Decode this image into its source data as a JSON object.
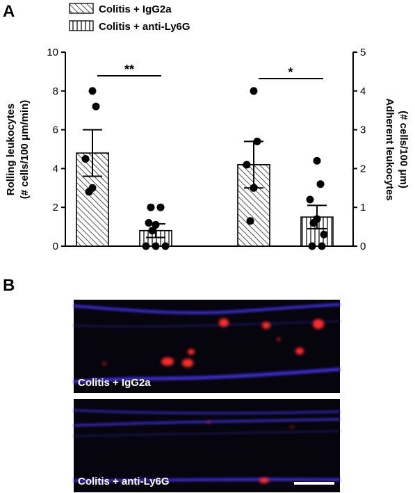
{
  "panel_a_label": "A",
  "panel_b_label": "B",
  "legend": [
    {
      "label": "Colitis + IgG2a",
      "pattern": "diagonal-hatch"
    },
    {
      "label": "Colitis + anti-Ly6G",
      "pattern": "vertical-stripes"
    }
  ],
  "chart_data": {
    "type": "bar",
    "groups": [
      {
        "axis": "left",
        "ylabel_line1": "Rolling leukocytes",
        "ylabel_line2": "(# cells/100 μm/min)",
        "ylim": [
          0,
          10
        ],
        "yticks": [
          0,
          2,
          4,
          6,
          8,
          10
        ],
        "significance": "**",
        "bars": [
          {
            "series": "Colitis + IgG2a",
            "mean": 4.8,
            "sem": 1.2,
            "points": [
              8.0,
              7.2,
              4.5,
              3.0,
              2.8
            ]
          },
          {
            "series": "Colitis + anti-Ly6G",
            "mean": 0.8,
            "sem": 0.35,
            "points": [
              2.0,
              2.0,
              1.2,
              1.1,
              0.8,
              0.0,
              0.0,
              0.0
            ]
          }
        ]
      },
      {
        "axis": "right",
        "ylabel_line1": "Adherent leukocytes",
        "ylabel_line2": "(# cells/100 μm)",
        "ylim": [
          0,
          5
        ],
        "yticks": [
          0,
          1,
          2,
          3,
          4,
          5
        ],
        "significance": "*",
        "bars": [
          {
            "series": "Colitis + IgG2a",
            "mean": 2.1,
            "sem": 0.6,
            "points": [
              4.0,
              2.7,
              2.1,
              1.5,
              0.65
            ]
          },
          {
            "series": "Colitis + anti-Ly6G",
            "mean": 0.75,
            "sem": 0.3,
            "points": [
              2.2,
              1.6,
              1.2,
              0.7,
              0.6,
              0.3,
              0.0,
              0.0
            ]
          }
        ]
      }
    ]
  },
  "micrographs": [
    {
      "label": "Colitis + IgG2a"
    },
    {
      "label": "Colitis + anti-Ly6G",
      "scale_bar": true
    }
  ],
  "colors": {
    "micro_bg": "#06040c",
    "vessel": "#3a2fd0",
    "cell": "#ff2a2a"
  }
}
